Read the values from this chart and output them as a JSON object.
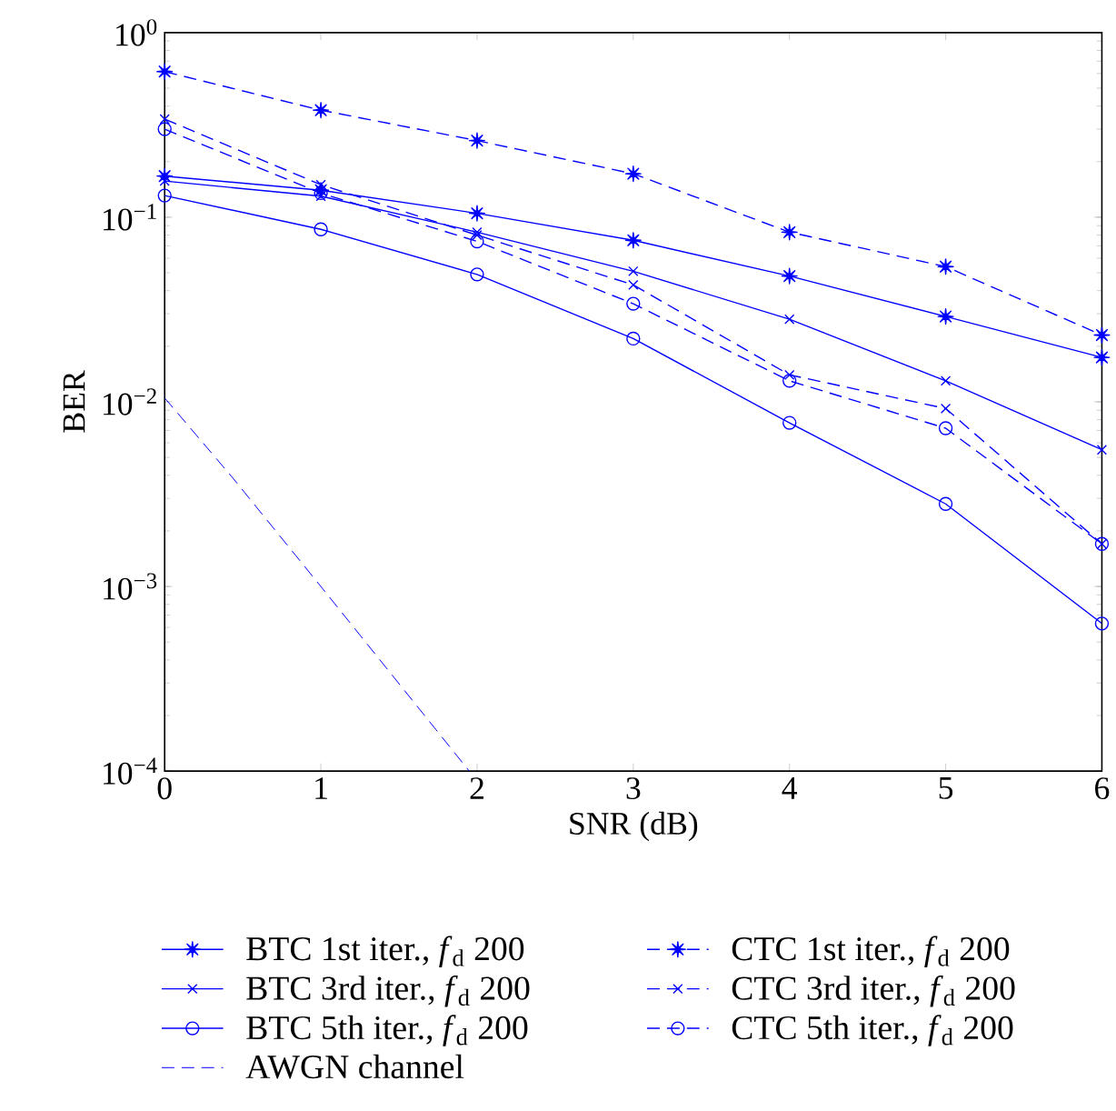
{
  "chart_data": {
    "type": "line",
    "xlabel": "SNR (dB)",
    "ylabel": "BER",
    "log": "y",
    "legend": "bottom",
    "x": [
      0,
      1,
      2,
      3,
      4,
      5,
      6
    ],
    "xlim": [
      0,
      6
    ],
    "xticks": [
      0,
      1,
      2,
      3,
      4,
      5,
      6
    ],
    "ylim": [
      0.0001,
      1
    ],
    "yticks": [
      {
        "value": 0.0001,
        "label": "10$^{−4}$"
      },
      {
        "value": 0.001,
        "label": "10$^{−3}$"
      },
      {
        "value": 0.01,
        "label": "10$^{−2}$"
      },
      {
        "value": 0.1,
        "label": "10$^{−1}$"
      },
      {
        "value": 1,
        "label": "10$^{0}$"
      }
    ],
    "series": [
      {
        "name": "BTC 1st iter., *f*$_{d}$ 200",
        "color": "#0000ff",
        "line_style": "solid",
        "marker": "star",
        "values": [
          0.167,
          0.14,
          0.105,
          0.075,
          0.048,
          0.029,
          0.0174
        ]
      },
      {
        "name": "BTC 3rd iter., *f*$_{d}$ 200",
        "color": "#0000ff",
        "line_style": "solid",
        "marker": "cross",
        "values": [
          0.157,
          0.13,
          0.083,
          0.051,
          0.028,
          0.013,
          0.0055
        ]
      },
      {
        "name": "BTC 5th iter., *f*$_{d}$ 200",
        "color": "#0000ff",
        "line_style": "solid",
        "marker": "circle",
        "values": [
          0.131,
          0.086,
          0.049,
          0.022,
          0.0077,
          0.0028,
          0.00063
        ]
      },
      {
        "name": "AWGN channel",
        "color": "#0000ff",
        "line_style": "dashed",
        "marker": "none",
        "x": [
          0,
          0.433,
          1,
          1.95
        ],
        "values": [
          0.0105,
          0.0039,
          0.001,
          0.0001
        ]
      },
      {
        "name": "CTC 1st iter., *f*$_{d}$ 200",
        "color": "#0000ff",
        "line_style": "dashed",
        "marker": "star",
        "values": [
          0.615,
          0.38,
          0.26,
          0.172,
          0.083,
          0.054,
          0.023
        ]
      },
      {
        "name": "CTC 3rd iter., *f*$_{d}$ 200",
        "color": "#0000ff",
        "line_style": "dashed",
        "marker": "cross",
        "values": [
          0.34,
          0.15,
          0.08,
          0.043,
          0.014,
          0.0092,
          0.0017
        ]
      },
      {
        "name": "CTC 5th iter., *f*$_{d}$ 200",
        "color": "#0000ff",
        "line_style": "dashed",
        "marker": "circle",
        "values": [
          0.3,
          0.135,
          0.074,
          0.034,
          0.013,
          0.0072,
          0.0017
        ]
      }
    ]
  }
}
